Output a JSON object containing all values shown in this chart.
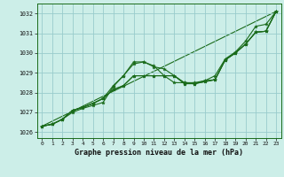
{
  "title": "Graphe pression niveau de la mer (hPa)",
  "bg_color": "#cceee8",
  "grid_color": "#99cccc",
  "line_color": "#1a6b1a",
  "marker_color": "#1a6b1a",
  "ylim": [
    1025.7,
    1032.5
  ],
  "yticks": [
    1026,
    1027,
    1028,
    1029,
    1030,
    1031,
    1032
  ],
  "xlim": [
    -0.5,
    23.5
  ],
  "xticks": [
    0,
    1,
    2,
    3,
    4,
    5,
    6,
    7,
    8,
    9,
    10,
    11,
    12,
    13,
    14,
    15,
    16,
    17,
    18,
    19,
    20,
    21,
    22,
    23
  ],
  "series": [
    [
      1026.3,
      1026.4,
      1026.65,
      1027.0,
      1027.2,
      1027.35,
      1027.5,
      1028.3,
      1028.85,
      1029.45,
      1029.55,
      1029.3,
      1029.2,
      1028.85,
      1028.5,
      1028.45,
      1028.6,
      1028.65,
      1029.65,
      1030.0,
      1030.45,
      1031.05,
      1031.1,
      1032.1
    ],
    [
      1026.3,
      1026.4,
      1026.65,
      1027.1,
      1027.25,
      1027.45,
      1027.7,
      1028.15,
      1028.35,
      1028.85,
      1028.85,
      1028.85,
      1028.85,
      1028.85,
      1028.45,
      1028.45,
      1028.55,
      1028.65,
      1029.65,
      1030.0,
      1030.45,
      1031.05,
      1031.1,
      1032.1
    ],
    [
      1026.3,
      1026.4,
      1026.65,
      1027.1,
      1027.25,
      1027.45,
      1027.7,
      1028.15,
      1028.35,
      1028.85,
      1028.85,
      1028.85,
      1028.85,
      1028.85,
      1028.45,
      1028.45,
      1028.55,
      1028.65,
      1029.65,
      1030.0,
      1030.45,
      1031.05,
      1031.1,
      1032.1
    ],
    [
      1026.3,
      1026.4,
      1026.65,
      1027.1,
      1027.25,
      1027.45,
      1027.7,
      1028.35,
      1028.85,
      1029.55,
      1029.55,
      1029.35,
      1028.85,
      1028.5,
      1028.5,
      1028.5,
      1028.6,
      1028.85,
      1029.7,
      1030.05,
      1030.6,
      1031.35,
      1031.45,
      1032.1
    ]
  ],
  "straight_line": [
    1026.3,
    1032.1
  ]
}
